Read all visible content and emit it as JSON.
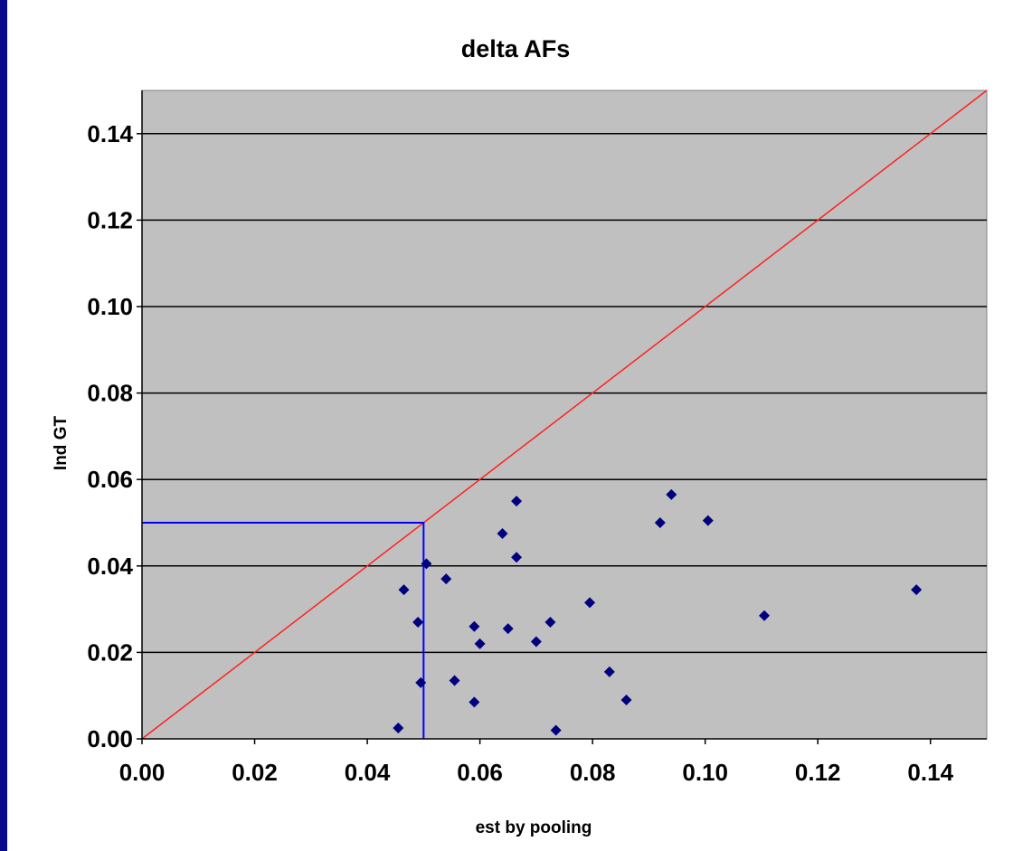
{
  "chart_data": {
    "type": "scatter",
    "title": "delta AFs",
    "xlabel": "est by pooling",
    "ylabel": "Ind GT",
    "xlim": [
      0,
      0.15
    ],
    "ylim": [
      0,
      0.15
    ],
    "x_ticks": [
      "0.00",
      "0.02",
      "0.04",
      "0.06",
      "0.08",
      "0.10",
      "0.12",
      "0.14"
    ],
    "y_ticks": [
      "0.00",
      "0.02",
      "0.04",
      "0.06",
      "0.08",
      "0.10",
      "0.12",
      "0.14"
    ],
    "grid": "horizontal",
    "plot_background": "#c0c0c0",
    "series": [
      {
        "color": "#00007f",
        "marker": "diamond",
        "points": [
          [
            0.0455,
            0.0025
          ],
          [
            0.0465,
            0.0345
          ],
          [
            0.049,
            0.027
          ],
          [
            0.0495,
            0.013
          ],
          [
            0.0505,
            0.0405
          ],
          [
            0.054,
            0.037
          ],
          [
            0.0555,
            0.0135
          ],
          [
            0.059,
            0.026
          ],
          [
            0.059,
            0.0085
          ],
          [
            0.06,
            0.022
          ],
          [
            0.064,
            0.0475
          ],
          [
            0.065,
            0.0255
          ],
          [
            0.0665,
            0.055
          ],
          [
            0.0665,
            0.042
          ],
          [
            0.07,
            0.0225
          ],
          [
            0.0725,
            0.027
          ],
          [
            0.0735,
            0.002
          ],
          [
            0.0795,
            0.0315
          ],
          [
            0.083,
            0.0155
          ],
          [
            0.086,
            0.009
          ],
          [
            0.092,
            0.05
          ],
          [
            0.094,
            0.0565
          ],
          [
            0.1005,
            0.0505
          ],
          [
            0.1105,
            0.0285
          ],
          [
            0.1375,
            0.0345
          ]
        ]
      }
    ],
    "reference_lines": [
      {
        "type": "diagonal",
        "color": "#ff2020",
        "from": [
          0,
          0
        ],
        "to": [
          0.15,
          0.15
        ]
      },
      {
        "type": "threshold-box",
        "color": "#0000ff",
        "x": 0.05,
        "y": 0.05
      }
    ]
  }
}
